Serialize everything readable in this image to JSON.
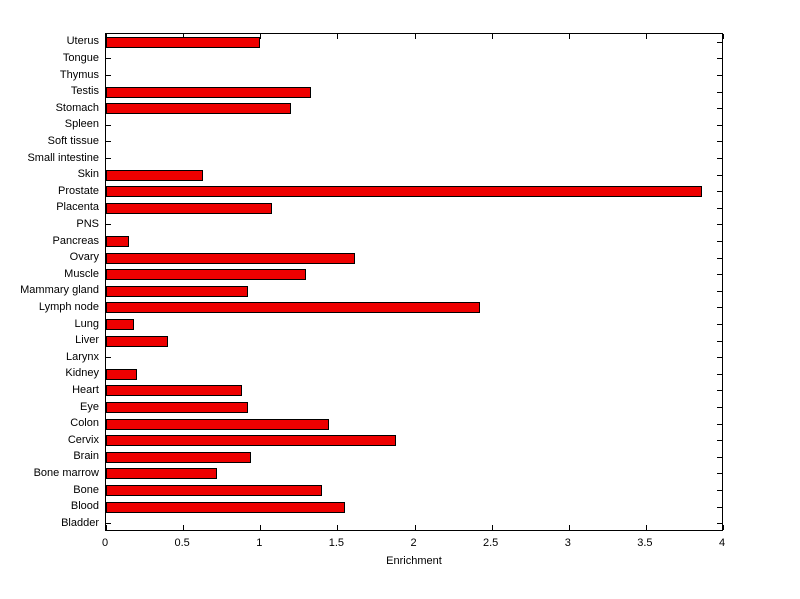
{
  "chart_data": {
    "type": "bar",
    "orientation": "horizontal",
    "title": "",
    "xlabel": "Enrichment",
    "ylabel": "",
    "xlim": [
      0,
      4
    ],
    "xtick_values": [
      0,
      0.5,
      1,
      1.5,
      2,
      2.5,
      3,
      3.5,
      4
    ],
    "xtick_labels": [
      "0",
      "0.5",
      "1",
      "1.5",
      "2",
      "2.5",
      "3",
      "3.5",
      "4"
    ],
    "grid": false,
    "legend": false,
    "bar_color": "#ee0000",
    "bar_edge_color": "#000000",
    "categories": [
      "Uterus",
      "Tongue",
      "Thymus",
      "Testis",
      "Stomach",
      "Spleen",
      "Soft tissue",
      "Small intestine",
      "Skin",
      "Prostate",
      "Placenta",
      "PNS",
      "Pancreas",
      "Ovary",
      "Muscle",
      "Mammary gland",
      "Lymph node",
      "Lung",
      "Liver",
      "Larynx",
      "Kidney",
      "Heart",
      "Eye",
      "Colon",
      "Cervix",
      "Brain",
      "Bone marrow",
      "Bone",
      "Blood",
      "Bladder"
    ],
    "values": [
      1.0,
      0,
      0,
      1.33,
      1.2,
      0,
      0,
      0,
      0.63,
      3.87,
      1.08,
      0,
      0.15,
      1.62,
      1.3,
      0.92,
      2.43,
      0.18,
      0.4,
      0,
      0.2,
      0.88,
      0.92,
      1.45,
      1.88,
      0.94,
      0.72,
      1.4,
      1.55,
      0
    ]
  }
}
